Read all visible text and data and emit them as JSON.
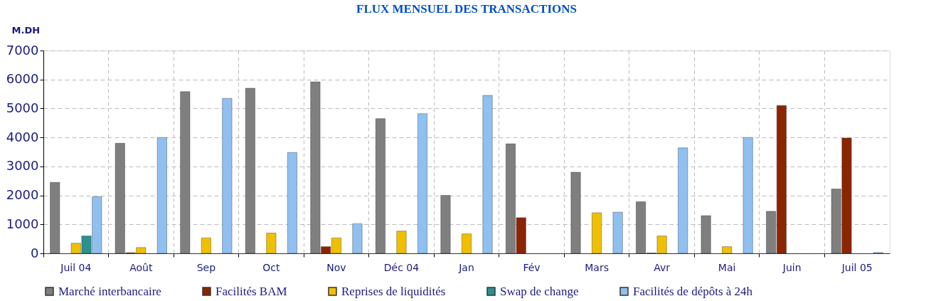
{
  "chart_data": {
    "type": "bar",
    "title": "FLUX MENSUEL DES TRANSACTIONS",
    "ylabel": "M.DH",
    "categories": [
      "Juil 04",
      "Août",
      "Sep",
      "Oct",
      "Nov",
      "Déc 04",
      "Jan",
      "Fév",
      "Mars",
      "Avr",
      "Mai",
      "Juin",
      "Juil 05"
    ],
    "series": [
      {
        "name": "Marché interbancaire",
        "color": "#7f7f7f",
        "values": [
          2450,
          3800,
          5580,
          5700,
          5920,
          4650,
          2000,
          3780,
          2800,
          1780,
          1300,
          1450,
          2220
        ]
      },
      {
        "name": "Facilités BAM",
        "color": "#8b2500",
        "values": [
          null,
          20,
          null,
          null,
          230,
          null,
          null,
          1230,
          null,
          10,
          null,
          5100,
          3980
        ]
      },
      {
        "name": "Reprises de liquidités",
        "color": "#f0c000",
        "values": [
          350,
          200,
          530,
          700,
          530,
          770,
          670,
          null,
          1400,
          600,
          230,
          null,
          null
        ]
      },
      {
        "name": "Swap de change",
        "color": "#2a9090",
        "values": [
          600,
          null,
          null,
          null,
          null,
          null,
          null,
          null,
          null,
          null,
          null,
          null,
          null
        ]
      },
      {
        "name": "Facilités de dépôts à 24h",
        "color": "#90c0f0",
        "values": [
          1950,
          4000,
          5350,
          3480,
          1020,
          4820,
          5450,
          null,
          1420,
          3640,
          4000,
          null,
          30
        ]
      }
    ],
    "ylim": [
      0,
      7000
    ],
    "yticks": [
      0,
      1000,
      2000,
      3000,
      4000,
      5000,
      6000,
      7000
    ],
    "grid": true,
    "legend": "bottom"
  }
}
